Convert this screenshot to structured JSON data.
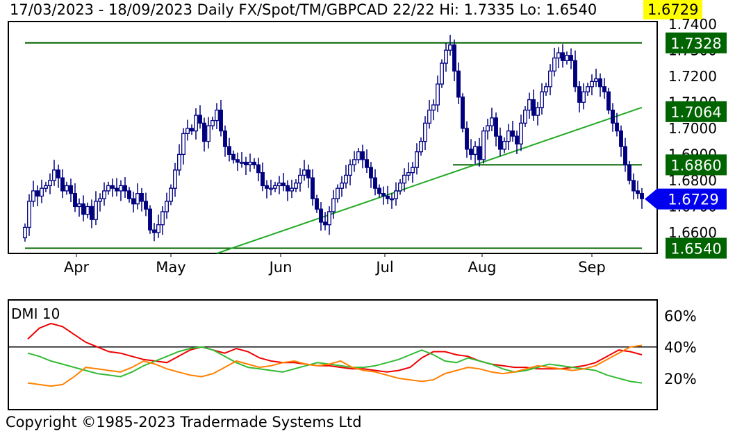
{
  "header": {
    "text": "17/03/2023 - 18/09/2023  Daily  FX/Spot/TM/GBPCAD 22/22  Hi: 1.7335  Lo: 1.6540",
    "last": "1.6729"
  },
  "copyright": "Copyright ©1985-2023 Tradermade Systems Ltd",
  "colors": {
    "candle": "#00007f",
    "level_line": "#006400",
    "trend_line": "#22aa22",
    "label_bg": "#006400",
    "last_bg": "#0000ee",
    "dmi_red": "#ee0000",
    "dmi_green": "#33bb33",
    "dmi_orange": "#ff8000"
  },
  "chart_data": [
    {
      "type": "candlestick",
      "title": "",
      "instrument": "FX/Spot/TM/GBPCAD",
      "period": "Daily",
      "x_tick_labels": [
        "Apr",
        "May",
        "Jun",
        "Jul",
        "Aug",
        "Sep"
      ],
      "y_tick_labels": [
        "1.6600",
        "1.6700",
        "1.6800",
        "1.6900",
        "1.7000",
        "1.7100",
        "1.7200",
        "1.7300",
        "1.7400"
      ],
      "ylim": [
        1.652,
        1.741
      ],
      "high": 1.7335,
      "low": 1.654,
      "last": 1.6729,
      "closes": [
        1.662,
        1.672,
        1.676,
        1.674,
        1.677,
        1.678,
        1.68,
        1.684,
        1.681,
        1.676,
        1.678,
        1.675,
        1.67,
        1.671,
        1.667,
        1.67,
        1.665,
        1.672,
        1.673,
        1.676,
        1.678,
        1.677,
        1.676,
        1.678,
        1.676,
        1.673,
        1.671,
        1.675,
        1.672,
        1.669,
        1.661,
        1.66,
        1.663,
        1.668,
        1.672,
        1.677,
        1.684,
        1.69,
        1.698,
        1.7,
        1.699,
        1.705,
        1.702,
        1.695,
        1.701,
        1.703,
        1.707,
        1.699,
        1.693,
        1.69,
        1.688,
        1.687,
        1.687,
        1.686,
        1.687,
        1.686,
        1.683,
        1.678,
        1.677,
        1.677,
        1.678,
        1.679,
        1.678,
        1.676,
        1.677,
        1.679,
        1.682,
        1.684,
        1.681,
        1.673,
        1.669,
        1.664,
        1.663,
        1.668,
        1.673,
        1.677,
        1.679,
        1.682,
        1.686,
        1.688,
        1.691,
        1.688,
        1.685,
        1.681,
        1.677,
        1.675,
        1.674,
        1.673,
        1.673,
        1.676,
        1.679,
        1.682,
        1.683,
        1.685,
        1.691,
        1.695,
        1.702,
        1.707,
        1.709,
        1.717,
        1.725,
        1.73,
        1.732,
        1.722,
        1.712,
        1.7,
        1.692,
        1.69,
        1.693,
        1.688,
        1.699,
        1.701,
        1.704,
        1.697,
        1.692,
        1.695,
        1.699,
        1.697,
        1.694,
        1.702,
        1.707,
        1.711,
        1.705,
        1.708,
        1.714,
        1.716,
        1.722,
        1.727,
        1.729,
        1.726,
        1.728,
        1.726,
        1.716,
        1.71,
        1.714,
        1.716,
        1.718,
        1.719,
        1.716,
        1.714,
        1.707,
        1.702,
        1.699,
        1.693,
        1.686,
        1.68,
        1.676,
        1.675,
        1.673
      ]
    },
    {
      "type": "line",
      "title": "DMI 10",
      "y_tick_labels": [
        "20%",
        "40%",
        "60%"
      ],
      "ylim": [
        0,
        70
      ],
      "reference_line": 40,
      "series": [
        {
          "color": "#ee0000",
          "values": [
            45,
            52,
            55,
            53,
            48,
            43,
            40,
            37,
            36,
            34,
            32,
            31,
            30,
            34,
            38,
            40,
            38,
            36,
            39,
            37,
            33,
            31,
            30,
            30,
            29,
            28,
            28,
            27,
            26,
            26,
            25,
            24,
            25,
            27,
            33,
            37,
            37,
            35,
            34,
            31,
            29,
            28,
            27,
            27,
            26,
            26,
            26,
            27,
            28,
            30,
            34,
            38,
            37,
            35
          ]
        },
        {
          "color": "#33bb33",
          "values": [
            36,
            34,
            31,
            29,
            27,
            25,
            23,
            22,
            21,
            24,
            28,
            31,
            34,
            37,
            39,
            40,
            38,
            34,
            30,
            27,
            26,
            25,
            24,
            26,
            28,
            30,
            29,
            28,
            27,
            27,
            28,
            30,
            32,
            35,
            38,
            35,
            31,
            30,
            33,
            31,
            29,
            26,
            24,
            25,
            27,
            29,
            28,
            27,
            26,
            25,
            22,
            20,
            18,
            17
          ]
        },
        {
          "color": "#ff8000",
          "values": [
            17,
            16,
            15,
            16,
            21,
            27,
            26,
            25,
            24,
            27,
            31,
            29,
            26,
            24,
            22,
            21,
            23,
            27,
            31,
            29,
            27,
            28,
            30,
            31,
            29,
            28,
            29,
            31,
            27,
            25,
            24,
            22,
            20,
            19,
            18,
            19,
            23,
            25,
            27,
            26,
            24,
            23,
            24,
            26,
            28,
            27,
            26,
            25,
            26,
            28,
            32,
            36,
            40,
            41
          ]
        }
      ]
    }
  ],
  "price_lines": {
    "levels": [
      "1.7328",
      "1.7064",
      "1.6860",
      "1.6540"
    ],
    "last_label": "1.6729"
  }
}
